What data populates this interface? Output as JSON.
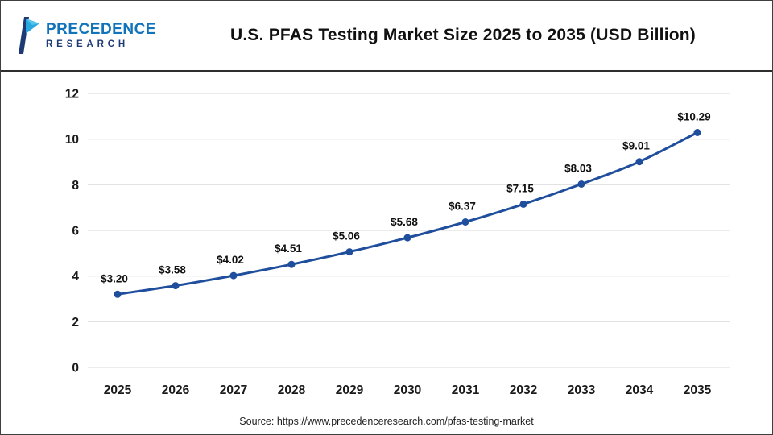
{
  "meta": {
    "title": "U.S. PFAS Testing Market Size 2025 to 2035 (USD Billion)",
    "source_text": "Source: https://www.precedenceresearch.com/pfas-testing-market"
  },
  "logo": {
    "line1": "PRECEDENCE",
    "line2": "RESEARCH"
  },
  "chart_data": {
    "type": "line",
    "title": "U.S. PFAS Testing Market Size 2025 to 2035 (USD Billion)",
    "categories": [
      "2025",
      "2026",
      "2027",
      "2028",
      "2029",
      "2030",
      "2031",
      "2032",
      "2033",
      "2034",
      "2035"
    ],
    "values": [
      3.2,
      3.58,
      4.02,
      4.51,
      5.06,
      5.68,
      6.37,
      7.15,
      8.03,
      9.01,
      10.29
    ],
    "point_labels": [
      "$3.20",
      "$3.58",
      "$4.02",
      "$4.51",
      "$5.06",
      "$5.68",
      "$6.37",
      "$7.15",
      "$8.03",
      "$9.01",
      "$10.29"
    ],
    "xlabel": "",
    "ylabel": "",
    "ylim": [
      0,
      12
    ],
    "yticks": [
      0,
      2,
      4,
      6,
      8,
      10,
      12
    ],
    "grid": true,
    "legend": "none",
    "line_color": "#1f4e9d",
    "marker_color": "#1f4e9d",
    "grid_color": "#d9d9d9",
    "label_color": "#111111"
  }
}
